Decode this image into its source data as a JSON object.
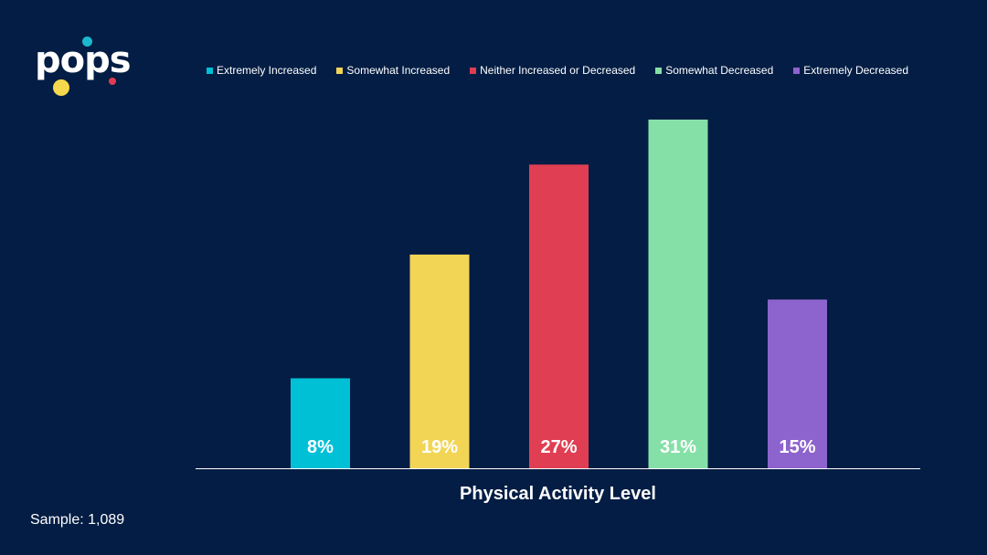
{
  "logo": {
    "text": "pops"
  },
  "legend": [
    {
      "label": "Extremely Increased",
      "color": "#00c0d6"
    },
    {
      "label": "Somewhat Increased",
      "color": "#f2d555"
    },
    {
      "label": "Neither Increased or Decreased",
      "color": "#e03e52"
    },
    {
      "label": "Somewhat Decreased",
      "color": "#85e0a8"
    },
    {
      "label": "Extremely Decreased",
      "color": "#8d63cd"
    }
  ],
  "chart_data": {
    "type": "bar",
    "categories": [
      "Extremely Increased",
      "Somewhat Increased",
      "Neither Increased or Decreased",
      "Somewhat Decreased",
      "Extremely Decreased"
    ],
    "values": [
      8,
      19,
      27,
      31,
      15
    ],
    "value_labels": [
      "8%",
      "19%",
      "27%",
      "31%",
      "15%"
    ],
    "colors": [
      "#00c0d6",
      "#f2d555",
      "#e03e52",
      "#85e0a8",
      "#8d63cd"
    ],
    "xlabel": "Physical Activity Level",
    "grid": false,
    "legend": "top"
  },
  "sample_text": "Sample: 1,089"
}
